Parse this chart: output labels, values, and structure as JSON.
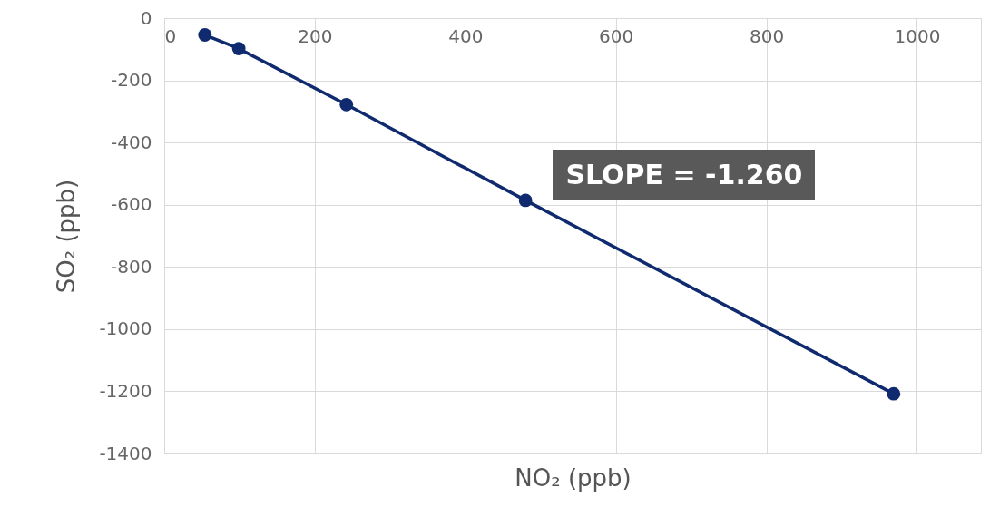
{
  "chart_data": {
    "type": "line",
    "xlabel": "NO₂ (ppb)",
    "ylabel": "SO₂ (ppb)",
    "x": [
      54,
      99,
      242,
      480,
      969
    ],
    "series": [
      {
        "color": "#0f2a6e",
        "values": [
          -54,
          -98,
          -278,
          -586,
          -1208
        ]
      }
    ],
    "xlim": [
      0,
      1085
    ],
    "xticks": [
      0,
      200,
      400,
      600,
      800,
      1000
    ],
    "ylim": [
      -1400,
      0
    ],
    "yticks": [
      -1400,
      -1200,
      -1000,
      -800,
      -600,
      -400,
      -200,
      0
    ],
    "grid": true,
    "marker": "circle",
    "line_style": "solid",
    "annotations": [
      "SLOPE = -1.260"
    ]
  }
}
